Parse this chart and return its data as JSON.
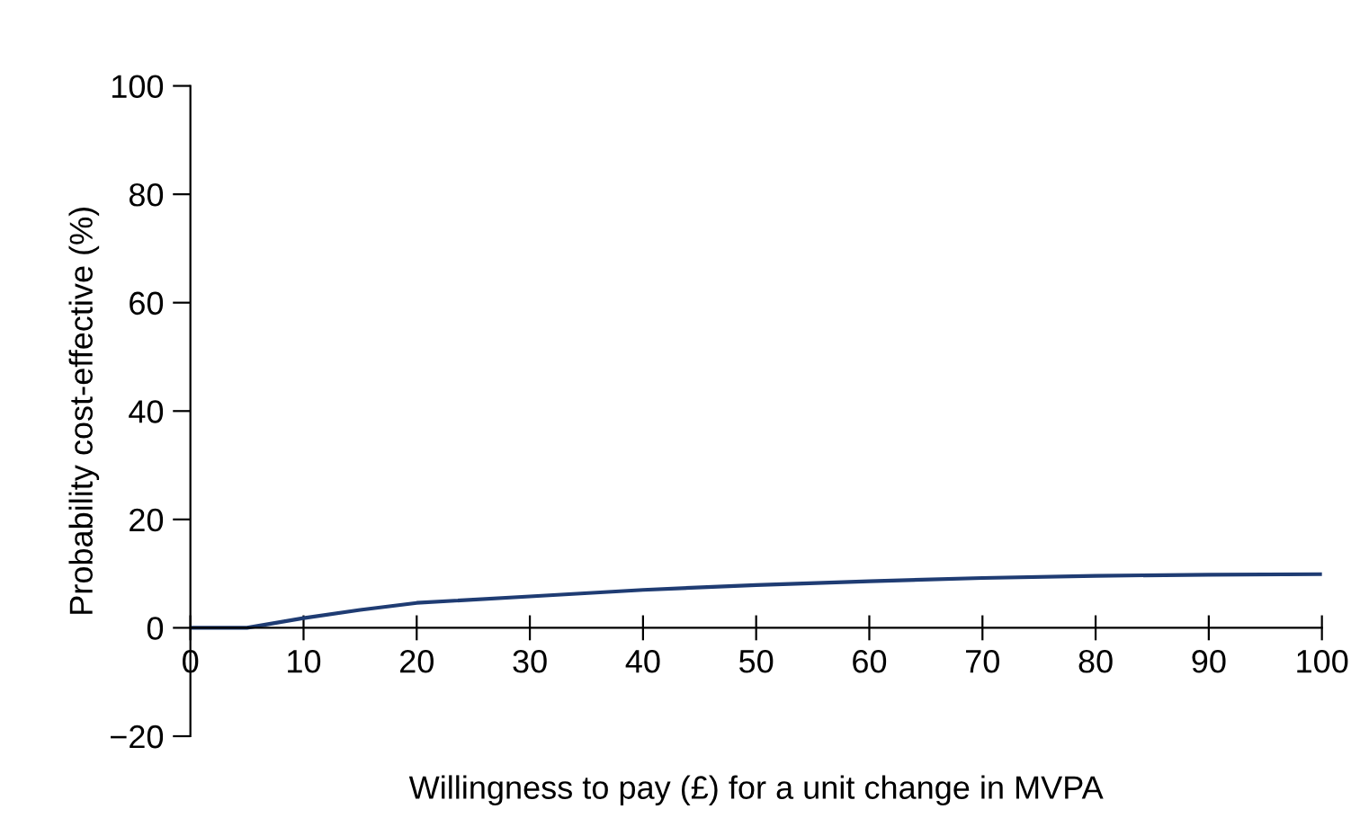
{
  "chart_data": {
    "type": "line",
    "xlabel": "Willingness to pay (£) for a unit change in MVPA",
    "ylabel": "Probability cost-effective (%)",
    "x": [
      0,
      3,
      5,
      10,
      15,
      20,
      30,
      40,
      50,
      60,
      70,
      80,
      90,
      100
    ],
    "series": [
      {
        "color": "#1f3c73",
        "values": [
          0,
          0,
          0,
          1.8,
          3.3,
          4.6,
          5.8,
          7.0,
          7.9,
          8.6,
          9.2,
          9.6,
          9.8,
          9.9
        ]
      }
    ],
    "xlim": [
      0,
      100
    ],
    "ylim": [
      -20,
      100
    ],
    "xticks": [
      0,
      10,
      20,
      30,
      40,
      50,
      60,
      70,
      80,
      90,
      100
    ],
    "yticks": [
      {
        "value": -20,
        "label": "−20"
      },
      0,
      20,
      40,
      60,
      80,
      100
    ],
    "grid": false,
    "legend": false,
    "marker": "none",
    "line_style": "solid"
  }
}
